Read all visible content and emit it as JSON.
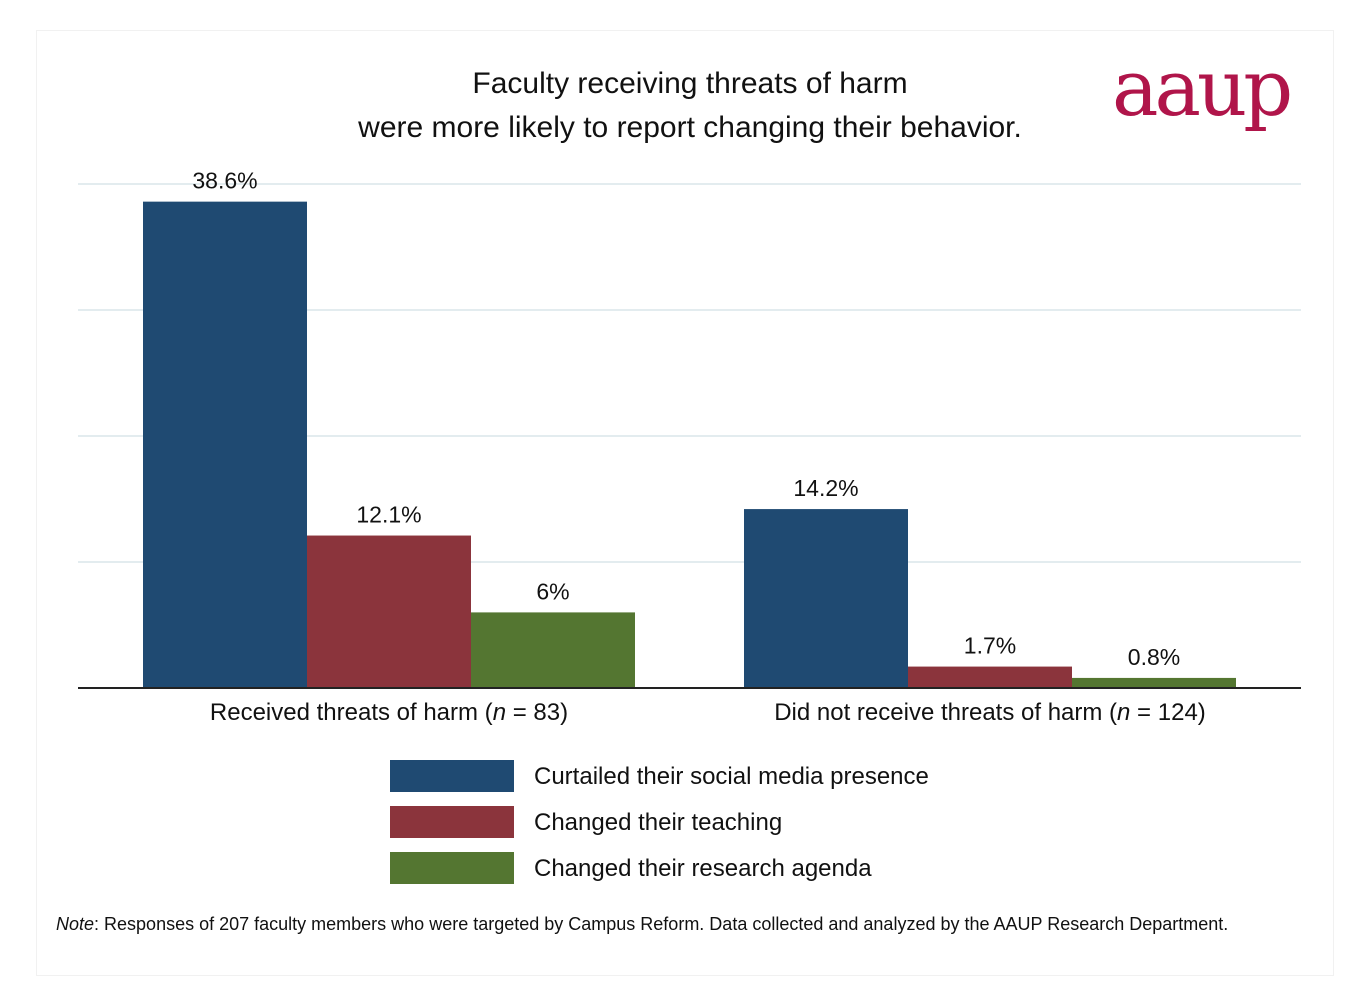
{
  "title_line1": "Faculty receiving threats of harm",
  "title_line2": "were more likely to report changing their behavior.",
  "logo_text": "aaup",
  "logo_color": "#b0154a",
  "note_lead": "Note",
  "note_text": ": Responses of 207 faculty members who were targeted by Campus Reform. Data collected and analyzed by the AAUP Research Department.",
  "category_labels": [
    {
      "pre": "Received threats of harm (",
      "n": "n",
      "post": " = 83)"
    },
    {
      "pre": "Did not receive threats of harm (",
      "n": "n",
      "post": " = 124)"
    }
  ],
  "chart_data": {
    "type": "bar",
    "title": "Faculty receiving threats of harm were more likely to report changing their behavior.",
    "categories": [
      "Received threats of harm (n = 83)",
      "Did not receive threats of harm (n = 124)"
    ],
    "series": [
      {
        "name": "Curtailed their social media presence",
        "color": "#1f4a72",
        "values": [
          38.6,
          14.2
        ],
        "labels": [
          "38.6%",
          "14.2%"
        ]
      },
      {
        "name": "Changed their teaching",
        "color": "#8b343c",
        "values": [
          12.1,
          1.7
        ],
        "labels": [
          "12.1%",
          "1.7%"
        ]
      },
      {
        "name": "Changed their research agenda",
        "color": "#547631",
        "values": [
          6,
          0.8
        ],
        "labels": [
          "6%",
          "0.8%"
        ]
      }
    ],
    "ylim": [
      0,
      40
    ],
    "grid": true,
    "legend_position": "bottom"
  }
}
